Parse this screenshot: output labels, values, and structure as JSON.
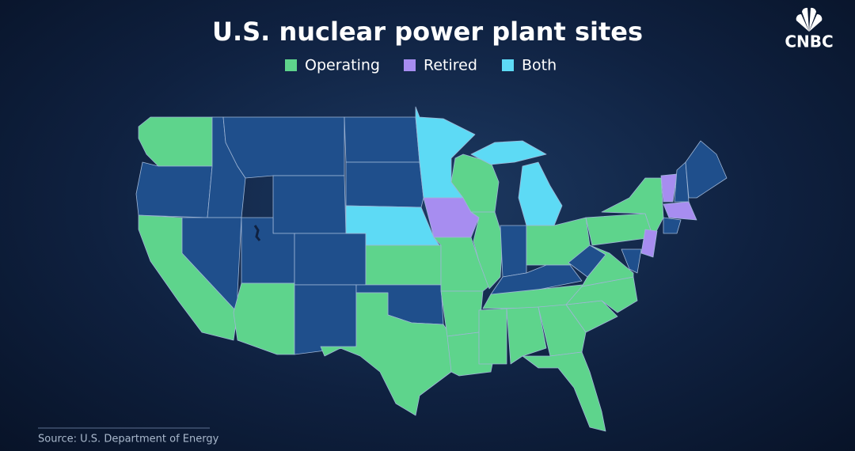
{
  "header": {
    "title": "U.S. nuclear power plant sites",
    "logo": "CNBC"
  },
  "legend": [
    {
      "label": "Operating",
      "color": "#5ed48c"
    },
    {
      "label": "Retired",
      "color": "#a78df0"
    },
    {
      "label": "Both",
      "color": "#5ddaf5"
    }
  ],
  "source": "Source: U.S. Department of Energy"
}
